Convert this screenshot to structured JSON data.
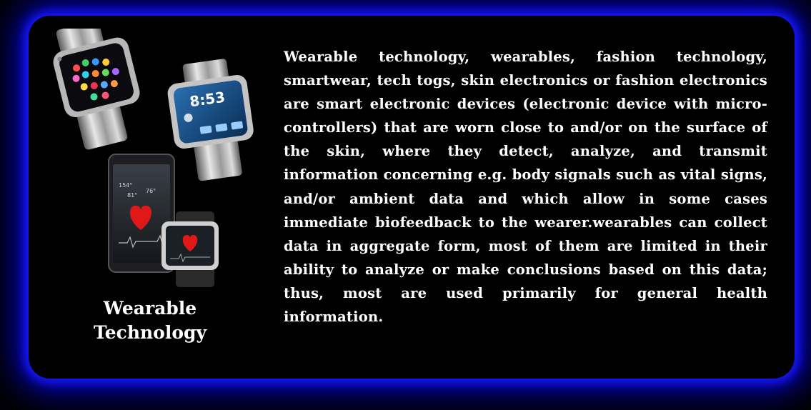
{
  "caption": {
    "line1": "Wearable",
    "line2": "Technology"
  },
  "description": "Wearable technology, wearables, fashion technology, smartwear, tech togs, skin electronics or fashion electronics are smart electronic devices (electronic device with micro-controllers) that are worn close to and/or on the surface of the skin, where they detect, analyze, and transmit information concerning e.g. body signals such as vital signs, and/or ambient data and which allow in some cases immediate biofeedback to the wearer.wearables can collect data in aggregate form, most of them are limited in their ability to analyze or make conclusions based on this data; thus, most are used primarily for general health information.",
  "devices": {
    "watch_time": "8:53",
    "phone_reading_1": "154°",
    "phone_reading_2": "76°",
    "phone_reading_3": "81°"
  },
  "colors": {
    "glow": "#1a1aff",
    "background": "#000000",
    "text": "#ffffff",
    "heart": "#e01818"
  }
}
